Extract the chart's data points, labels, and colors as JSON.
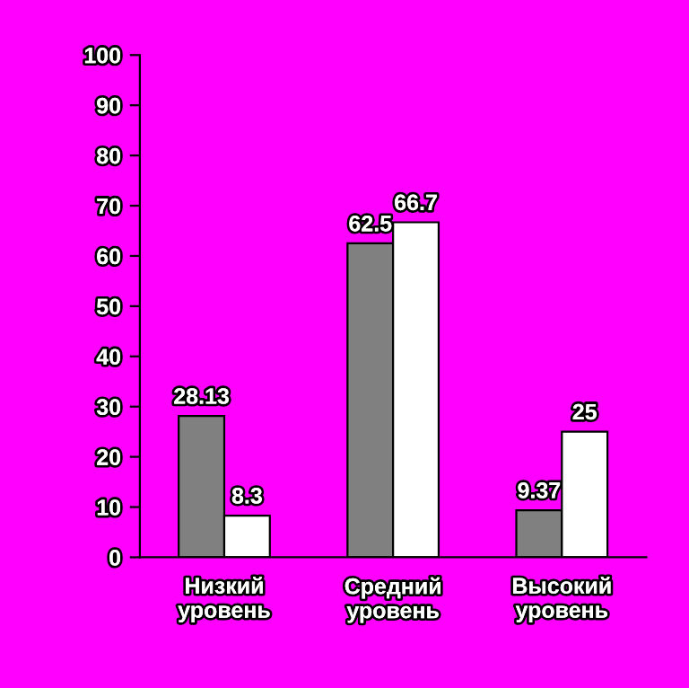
{
  "chart_data": {
    "type": "bar",
    "categories": [
      "Низкий\nуровень",
      "Средний\nуровень",
      "Высокий\nуровень"
    ],
    "series": [
      {
        "color": "#808080",
        "values": [
          28.13,
          62.5,
          9.37
        ]
      },
      {
        "color": "#ffffff",
        "values": [
          8.3,
          66.7,
          25
        ]
      }
    ],
    "ylim": [
      0,
      100
    ],
    "yticks": [
      0,
      10,
      20,
      30,
      40,
      50,
      60,
      70,
      80,
      90,
      100
    ],
    "data_labels": true,
    "grid": false,
    "legend": false
  }
}
